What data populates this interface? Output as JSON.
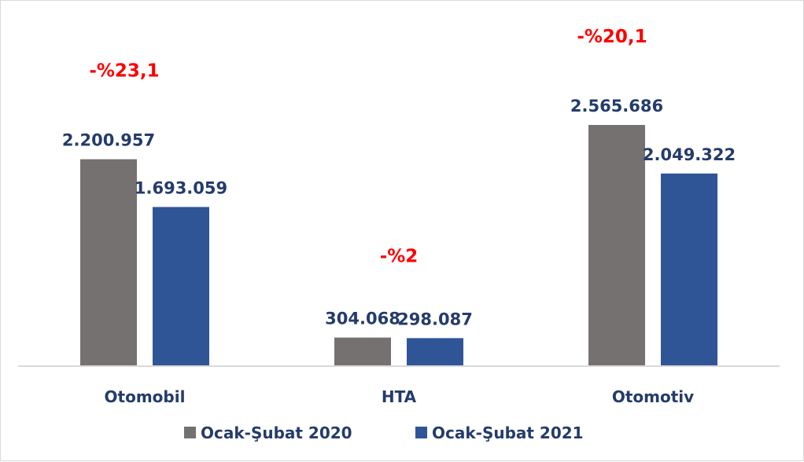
{
  "chart_data": {
    "type": "bar",
    "categories": [
      "Otomobil",
      "HTA",
      "Otomotiv"
    ],
    "series": [
      {
        "name": "Ocak-Şubat 2020",
        "values": [
          2200957,
          304068,
          2565686
        ],
        "labels": [
          "2.200.957",
          "304.068",
          "2.565.686"
        ],
        "color": "#767171"
      },
      {
        "name": "Ocak-Şubat 2021",
        "values": [
          1693059,
          298087,
          2049322
        ],
        "labels": [
          "1.693.059",
          "298.087",
          "2.049.322"
        ],
        "color": "#2f5597"
      }
    ],
    "annotations": [
      "-%23,1",
      "-%2",
      "-%20,1"
    ],
    "annotation_color": "#ff0000",
    "label_color": "#243b6b",
    "ylim": [
      0,
      2800000
    ],
    "grid": false,
    "legend": "bottom"
  }
}
